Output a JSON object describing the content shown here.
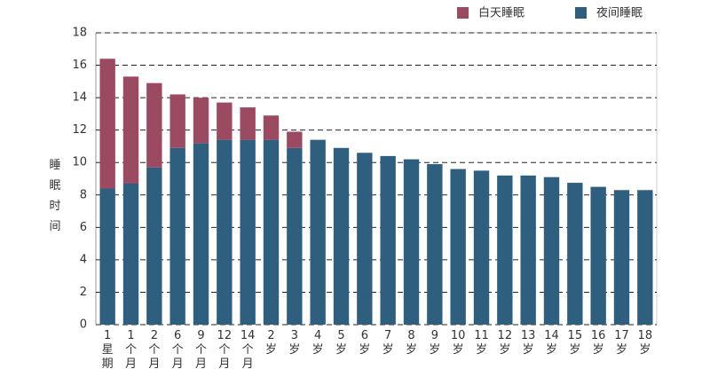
{
  "chart_data": {
    "type": "stacked_bar",
    "y_label": "睡眠时间",
    "categories": [
      "1星期",
      "1个月",
      "2个月",
      "6个月",
      "9个月",
      "12个月",
      "14个月",
      "2岁",
      "3岁",
      "4岁",
      "5岁",
      "6岁",
      "7岁",
      "8岁",
      "9岁",
      "10岁",
      "11岁",
      "12岁",
      "13岁",
      "14岁",
      "15岁",
      "16岁",
      "17岁",
      "18岁"
    ],
    "series": [
      {
        "name": "夜间睡眠",
        "color": "#2f5f7f",
        "values": [
          8.4,
          8.7,
          9.7,
          10.9,
          11.2,
          11.4,
          11.4,
          11.4,
          10.9,
          11.4,
          10.9,
          10.6,
          10.4,
          10.2,
          9.9,
          9.6,
          9.5,
          9.2,
          9.2,
          9.1,
          8.75,
          8.5,
          8.3,
          8.3
        ]
      },
      {
        "name": "白天睡眠",
        "color": "#9c4a62",
        "values": [
          8.0,
          6.6,
          5.2,
          3.3,
          2.8,
          2.3,
          2.0,
          1.5,
          1.0,
          null,
          null,
          null,
          null,
          null,
          null,
          null,
          null,
          null,
          null,
          null,
          null,
          null,
          null,
          null
        ]
      }
    ],
    "ylim": [
      0,
      18
    ],
    "yticks": [
      0,
      2,
      4,
      6,
      8,
      10,
      12,
      14,
      16,
      18
    ],
    "grid": true
  }
}
